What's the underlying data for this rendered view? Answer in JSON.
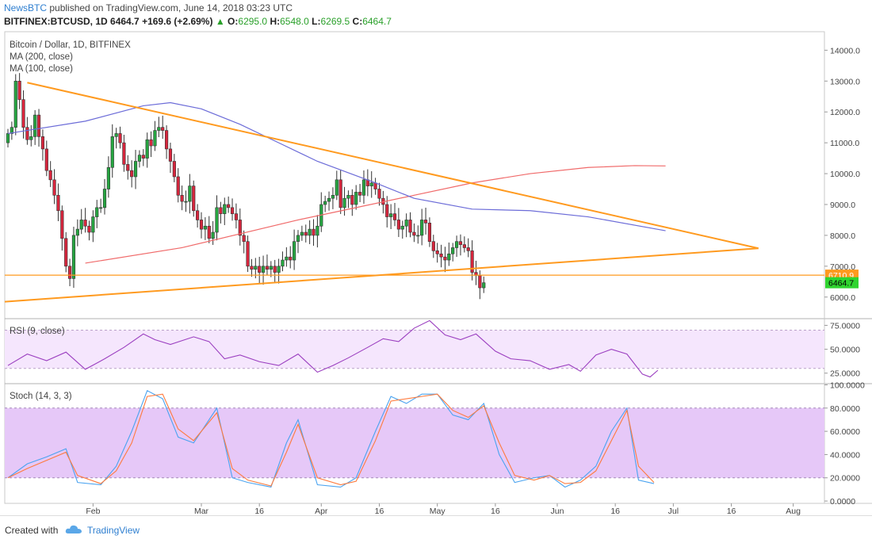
{
  "header": {
    "published_brand": "NewsBTC",
    "published_text": " published on TradingView.com, June 14, 2018 03:23 UTC",
    "symbol": "BITFINEX:BTCUSD, 1D",
    "last": "6464.7",
    "change": "+169.6 (+2.69%)",
    "o_label": "O:",
    "o_value": "6295.0",
    "h_label": "H:",
    "h_value": "6548.0",
    "l_label": "L:",
    "l_value": "6269.5",
    "c_label": "C:",
    "c_value": "6464.7"
  },
  "footer": {
    "created_with": "Created with",
    "brand": "TradingView"
  },
  "colors": {
    "bull": "#26a641",
    "bear": "#d7263d",
    "ma200": "#f06a6a",
    "ma100": "#6c6cd8",
    "trendline": "#ff9a1f",
    "rsi": "#9b3fc0",
    "stoch_k": "#4aa3f0",
    "stoch_d": "#ff7a3d",
    "band_fill": "#e6c8f8"
  },
  "chart_data": [
    {
      "type": "candlestick",
      "legend": [
        "Bitcoin / Dollar, 1D, BITFINEX",
        "MA (200, close)",
        "MA (100, close)"
      ],
      "x_ticks": [
        "Feb",
        "Mar",
        "16",
        "Apr",
        "16",
        "May",
        "16",
        "Jun",
        "16",
        "Jul",
        "16",
        "Aug"
      ],
      "y_ticks": [
        "14000.0",
        "13000.0",
        "12000.0",
        "11000.0",
        "10000.0",
        "9000.0",
        "8000.0",
        "7000.0",
        "6000.0"
      ],
      "ylim": [
        5300,
        14600
      ],
      "price_labels": [
        {
          "text": "6710.9",
          "value": 6710.9
        },
        {
          "text": "6464.7",
          "value": 6464.7
        }
      ],
      "ma200": [
        [
          20,
          7100
        ],
        [
          45,
          7600
        ],
        [
          75,
          8500
        ],
        [
          90,
          8900
        ],
        [
          105,
          9300
        ],
        [
          120,
          9700
        ],
        [
          135,
          10000
        ],
        [
          150,
          10200
        ],
        [
          162,
          10260
        ],
        [
          170,
          10250
        ]
      ],
      "ma100": [
        [
          0,
          11300
        ],
        [
          20,
          11700
        ],
        [
          35,
          12200
        ],
        [
          42,
          12300
        ],
        [
          50,
          12100
        ],
        [
          60,
          11600
        ],
        [
          70,
          11000
        ],
        [
          80,
          10400
        ],
        [
          95,
          9700
        ],
        [
          105,
          9200
        ],
        [
          120,
          8850
        ],
        [
          135,
          8800
        ],
        [
          150,
          8600
        ],
        [
          170,
          8150
        ]
      ],
      "trendlines": [
        {
          "x1": 5,
          "y1": 12950,
          "x2": 194,
          "y2": 7580
        },
        {
          "x1": 0,
          "y1": 5850,
          "x2": 194,
          "y2": 7580
        },
        {
          "x1": 0,
          "y1": 6710,
          "x2": 240,
          "y2": 6710
        }
      ]
    },
    {
      "type": "line",
      "title": "RSI (9, close)",
      "y_ticks": [
        "75.0000",
        "50.0000",
        "25.0000"
      ],
      "ylim": [
        14,
        82
      ],
      "band": [
        30,
        70
      ],
      "series": [
        {
          "values": [
            [
              0,
              33
            ],
            [
              5,
              45
            ],
            [
              10,
              38
            ],
            [
              15,
              47
            ],
            [
              20,
              29
            ],
            [
              25,
              40
            ],
            [
              30,
              52
            ],
            [
              35,
              66
            ],
            [
              38,
              60
            ],
            [
              42,
              55
            ],
            [
              48,
              63
            ],
            [
              52,
              58
            ],
            [
              56,
              40
            ],
            [
              60,
              44
            ],
            [
              65,
              37
            ],
            [
              70,
              33
            ],
            [
              75,
              45
            ],
            [
              80,
              26
            ],
            [
              84,
              33
            ],
            [
              88,
              41
            ],
            [
              93,
              52
            ],
            [
              97,
              61
            ],
            [
              101,
              58
            ],
            [
              105,
              72
            ],
            [
              109,
              80
            ],
            [
              113,
              65
            ],
            [
              117,
              60
            ],
            [
              121,
              66
            ],
            [
              126,
              48
            ],
            [
              130,
              40
            ],
            [
              135,
              38
            ],
            [
              140,
              29
            ],
            [
              145,
              34
            ],
            [
              148,
              27
            ],
            [
              152,
              44
            ],
            [
              156,
              50
            ],
            [
              160,
              45
            ],
            [
              164,
              24
            ],
            [
              166,
              21
            ],
            [
              168,
              28
            ]
          ]
        }
      ]
    },
    {
      "type": "line",
      "title": "Stoch (14, 3, 3)",
      "y_ticks": [
        "100.0000",
        "80.0000",
        "60.0000",
        "40.0000",
        "20.0000",
        "0.0000"
      ],
      "ylim": [
        -2,
        101
      ],
      "band": [
        20,
        80
      ],
      "series": [
        {
          "values": [
            [
              0,
              20
            ],
            [
              5,
              32
            ],
            [
              10,
              38
            ],
            [
              15,
              45
            ],
            [
              18,
              16
            ],
            [
              24,
              14
            ],
            [
              28,
              30
            ],
            [
              32,
              60
            ],
            [
              36,
              95
            ],
            [
              40,
              88
            ],
            [
              44,
              55
            ],
            [
              48,
              50
            ],
            [
              54,
              80
            ],
            [
              58,
              20
            ],
            [
              62,
              16
            ],
            [
              68,
              12
            ],
            [
              72,
              50
            ],
            [
              75,
              70
            ],
            [
              80,
              14
            ],
            [
              86,
              12
            ],
            [
              90,
              20
            ],
            [
              95,
              60
            ],
            [
              99,
              90
            ],
            [
              103,
              84
            ],
            [
              107,
              92
            ],
            [
              111,
              92
            ],
            [
              115,
              74
            ],
            [
              119,
              70
            ],
            [
              123,
              84
            ],
            [
              127,
              40
            ],
            [
              131,
              16
            ],
            [
              136,
              20
            ],
            [
              140,
              22
            ],
            [
              144,
              12
            ],
            [
              148,
              18
            ],
            [
              152,
              30
            ],
            [
              156,
              60
            ],
            [
              160,
              80
            ],
            [
              163,
              18
            ],
            [
              167,
              15
            ]
          ]
        },
        {
          "values": [
            [
              0,
              20
            ],
            [
              5,
              28
            ],
            [
              10,
              35
            ],
            [
              15,
              42
            ],
            [
              18,
              22
            ],
            [
              24,
              15
            ],
            [
              28,
              26
            ],
            [
              32,
              50
            ],
            [
              36,
              90
            ],
            [
              40,
              92
            ],
            [
              44,
              62
            ],
            [
              48,
              52
            ],
            [
              54,
              76
            ],
            [
              58,
              28
            ],
            [
              62,
              18
            ],
            [
              68,
              13
            ],
            [
              72,
              42
            ],
            [
              75,
              66
            ],
            [
              80,
              20
            ],
            [
              86,
              14
            ],
            [
              90,
              17
            ],
            [
              95,
              52
            ],
            [
              99,
              86
            ],
            [
              103,
              88
            ],
            [
              107,
              90
            ],
            [
              111,
              92
            ],
            [
              115,
              78
            ],
            [
              119,
              72
            ],
            [
              123,
              82
            ],
            [
              127,
              50
            ],
            [
              131,
              22
            ],
            [
              136,
              18
            ],
            [
              140,
              22
            ],
            [
              144,
              15
            ],
            [
              148,
              16
            ],
            [
              152,
              26
            ],
            [
              156,
              52
            ],
            [
              160,
              78
            ],
            [
              163,
              30
            ],
            [
              167,
              16
            ]
          ]
        }
      ]
    }
  ]
}
